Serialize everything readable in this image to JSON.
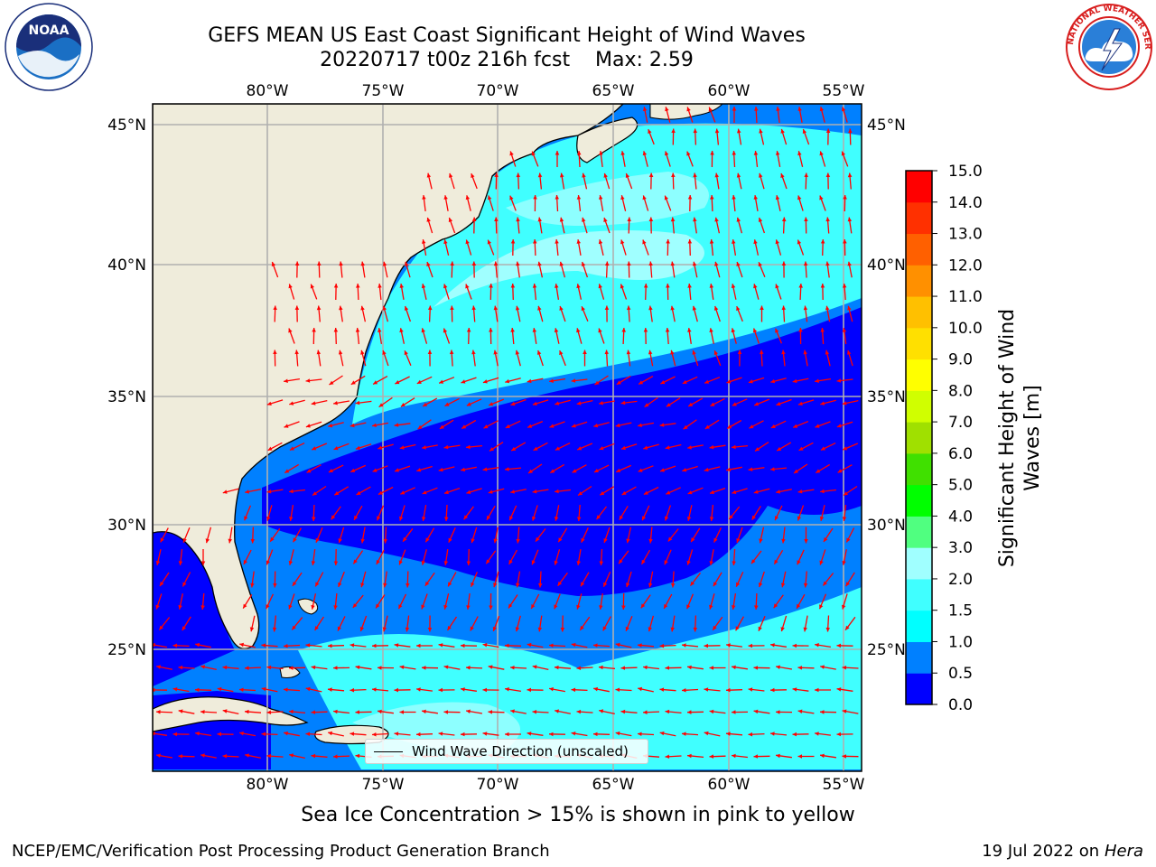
{
  "title": {
    "line1": "GEFS MEAN US East Coast Significant Height of Wind Waves",
    "line2": "20220717 t00z 216h fcst    Max: 2.59"
  },
  "logos": {
    "left": {
      "icon": "noaa-logo",
      "text": "NOAA",
      "ring_text": "NATIONAL OCEANIC AND ATMOSPHERIC ADMINISTRATION · U.S. DEPARTMENT OF COMMERCE"
    },
    "right": {
      "icon": "nws-logo",
      "ring_text": "NATIONAL WEATHER SERVICE"
    }
  },
  "map": {
    "lon_ticks": [
      "80°W",
      "75°W",
      "70°W",
      "65°W",
      "60°W",
      "55°W"
    ],
    "lat_ticks": [
      "45°N",
      "40°N",
      "35°N",
      "30°N",
      "25°N"
    ],
    "lon_range": [
      -85,
      -54.5
    ],
    "lat_range": [
      20.5,
      46.5
    ],
    "land_color": "#efecdb",
    "arrow_color": "#ff0000",
    "legend_label": "Wind Wave Direction (unscaled)"
  },
  "colorbar": {
    "title": "Significant Height of Wind\nWaves [m]",
    "ticks": [
      "15.0",
      "14.0",
      "13.0",
      "12.0",
      "11.0",
      "10.0",
      "9.0",
      "8.0",
      "7.0",
      "6.0",
      "5.0",
      "4.0",
      "3.0",
      "2.0",
      "1.5",
      "1.0",
      "0.5",
      "0.0"
    ],
    "colors": [
      "#0000ff",
      "#0080ff",
      "#00ffff",
      "#40ffff",
      "#a0ffff",
      "#50ff80",
      "#00ff00",
      "#40e000",
      "#a0e000",
      "#d0ff00",
      "#ffff00",
      "#ffe000",
      "#ffc000",
      "#ff9000",
      "#ff6000",
      "#ff3000",
      "#ff0000"
    ]
  },
  "footer": {
    "sea_ice": "Sea Ice Concentration > 15% is shown in pink to yellow",
    "credit": "NCEP/EMC/Verification Post Processing Product Generation Branch",
    "date_prefix": "19 Jul 2022 on ",
    "date_machine": "Hera"
  }
}
